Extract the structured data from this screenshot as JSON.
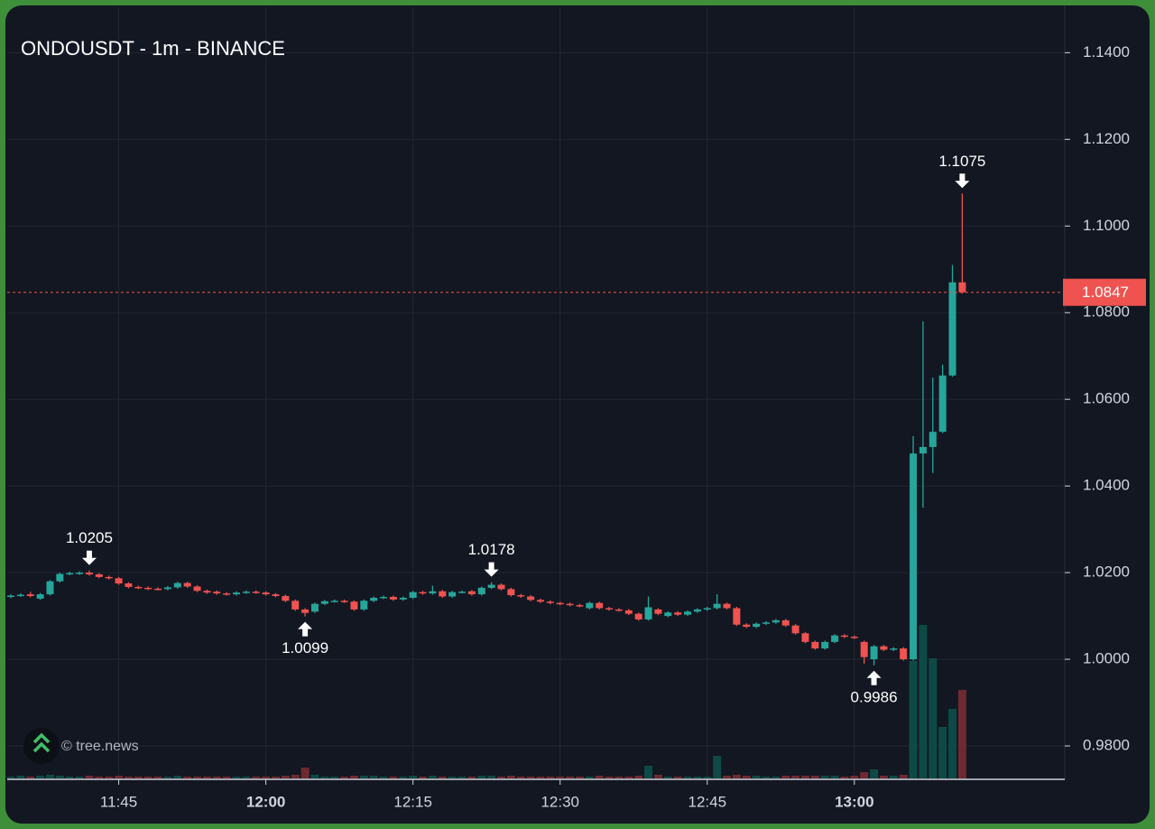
{
  "chart_data": {
    "type": "candlestick",
    "title": "ONDOUSDT - 1m - BINANCE",
    "watermark": "© tree.news",
    "x": [
      "11:34",
      "11:35",
      "11:36",
      "11:37",
      "11:38",
      "11:39",
      "11:40",
      "11:41",
      "11:42",
      "11:43",
      "11:44",
      "11:45",
      "11:46",
      "11:47",
      "11:48",
      "11:49",
      "11:50",
      "11:51",
      "11:52",
      "11:53",
      "11:54",
      "11:55",
      "11:56",
      "11:57",
      "11:58",
      "11:59",
      "12:00",
      "12:01",
      "12:02",
      "12:03",
      "12:04",
      "12:05",
      "12:06",
      "12:07",
      "12:08",
      "12:09",
      "12:10",
      "12:11",
      "12:12",
      "12:13",
      "12:14",
      "12:15",
      "12:16",
      "12:17",
      "12:18",
      "12:19",
      "12:20",
      "12:21",
      "12:22",
      "12:23",
      "12:24",
      "12:25",
      "12:26",
      "12:27",
      "12:28",
      "12:29",
      "12:30",
      "12:31",
      "12:32",
      "12:33",
      "12:34",
      "12:35",
      "12:36",
      "12:37",
      "12:38",
      "12:39",
      "12:40",
      "12:41",
      "12:42",
      "12:43",
      "12:44",
      "12:45",
      "12:46",
      "12:47",
      "12:48",
      "12:49",
      "12:50",
      "12:51",
      "12:52",
      "12:53",
      "12:54",
      "12:55",
      "12:56",
      "12:57",
      "12:58",
      "12:59",
      "13:00",
      "13:01",
      "13:02",
      "13:03",
      "13:04",
      "13:05",
      "13:06",
      "13:07",
      "13:08",
      "13:09",
      "13:10",
      "13:11"
    ],
    "open": [
      1.0144,
      1.0147,
      1.015,
      1.014,
      1.015,
      1.018,
      1.0197,
      1.0198,
      1.02,
      1.0196,
      1.019,
      1.0187,
      1.0175,
      1.0167,
      1.0165,
      1.0163,
      1.0162,
      1.0166,
      1.0176,
      1.0168,
      1.0158,
      1.0156,
      1.0152,
      1.015,
      1.0154,
      1.0156,
      1.0154,
      1.015,
      1.0146,
      1.0135,
      1.0115,
      1.011,
      1.0128,
      1.0134,
      1.0135,
      1.0133,
      1.0115,
      1.0135,
      1.0142,
      1.0144,
      1.0138,
      1.0142,
      1.0155,
      1.0152,
      1.0157,
      1.0145,
      1.0155,
      1.0157,
      1.015,
      1.0165,
      1.0172,
      1.0162,
      1.0148,
      1.0145,
      1.0137,
      1.0133,
      1.013,
      1.0128,
      1.0125,
      1.0118,
      1.013,
      1.0118,
      1.0115,
      1.0113,
      1.0105,
      1.0092,
      1.0115,
      1.01,
      1.0108,
      1.0103,
      1.011,
      1.0115,
      1.0118,
      1.0128,
      1.0118,
      1.008,
      1.0075,
      1.0082,
      1.0085,
      1.009,
      1.0078,
      1.006,
      1.004,
      1.0025,
      1.004,
      1.0055,
      1.0052,
      1.004,
      1.0,
      1.003,
      1.0022,
      1.0025,
      1.0,
      1.0475,
      1.049,
      1.0525,
      1.0655,
      1.087
    ],
    "high": [
      1.015,
      1.0152,
      1.0156,
      1.0153,
      1.0183,
      1.02,
      1.0202,
      1.0203,
      1.0205,
      1.0199,
      1.0193,
      1.019,
      1.0178,
      1.017,
      1.0168,
      1.0166,
      1.0169,
      1.0179,
      1.0179,
      1.0171,
      1.0161,
      1.0159,
      1.0155,
      1.0157,
      1.0159,
      1.0159,
      1.0157,
      1.0153,
      1.0149,
      1.0138,
      1.0118,
      1.0131,
      1.0137,
      1.0138,
      1.0138,
      1.0136,
      1.0138,
      1.0145,
      1.0147,
      1.0147,
      1.0145,
      1.0158,
      1.0158,
      1.017,
      1.016,
      1.0158,
      1.0159,
      1.016,
      1.0168,
      1.0178,
      1.0175,
      1.0165,
      1.0151,
      1.0148,
      1.014,
      1.0136,
      1.0133,
      1.0131,
      1.0128,
      1.0133,
      1.0133,
      1.0121,
      1.0118,
      1.0116,
      1.0108,
      1.0145,
      1.0118,
      1.0111,
      1.0111,
      1.0113,
      1.0118,
      1.0121,
      1.015,
      1.0131,
      1.0121,
      1.0083,
      1.0085,
      1.0088,
      1.0093,
      1.0093,
      1.0081,
      1.0063,
      1.0043,
      1.0043,
      1.0058,
      1.0058,
      1.0055,
      1.0043,
      1.0033,
      1.0033,
      1.0028,
      1.0028,
      1.0515,
      1.078,
      1.065,
      1.068,
      1.091,
      1.1075
    ],
    "low": [
      1.0141,
      1.0144,
      1.0143,
      1.0137,
      1.0147,
      1.0177,
      1.0194,
      1.0195,
      1.0193,
      1.0187,
      1.0184,
      1.0172,
      1.0164,
      1.0162,
      1.016,
      1.0159,
      1.0159,
      1.0163,
      1.0165,
      1.0155,
      1.0151,
      1.0149,
      1.0147,
      1.0147,
      1.0151,
      1.0151,
      1.0147,
      1.0143,
      1.0132,
      1.0112,
      1.0099,
      1.0107,
      1.0125,
      1.0131,
      1.013,
      1.0112,
      1.0112,
      1.0132,
      1.0139,
      1.0135,
      1.0135,
      1.0139,
      1.0149,
      1.0149,
      1.0142,
      1.0142,
      1.0152,
      1.0147,
      1.0147,
      1.0162,
      1.0159,
      1.0145,
      1.0142,
      1.0134,
      1.013,
      1.0127,
      1.0125,
      1.0122,
      1.012,
      1.0115,
      1.0115,
      1.0112,
      1.011,
      1.0102,
      1.0089,
      1.0089,
      1.0102,
      1.0097,
      1.01,
      1.01,
      1.0107,
      1.0112,
      1.0115,
      1.0115,
      1.0077,
      1.0072,
      1.0072,
      1.0079,
      1.0082,
      1.0075,
      1.0057,
      1.0037,
      1.0022,
      1.0022,
      1.0037,
      1.0049,
      1.0047,
      0.999,
      0.9986,
      1.0019,
      1.0019,
      0.9997,
      0.9997,
      1.035,
      1.043,
      1.0522,
      1.0652,
      1.0844
    ],
    "close": [
      1.0147,
      1.0149,
      1.0146,
      1.015,
      1.018,
      1.0197,
      1.0199,
      1.02,
      1.0196,
      1.019,
      1.0187,
      1.0175,
      1.0167,
      1.0165,
      1.0163,
      1.0162,
      1.0166,
      1.0176,
      1.0168,
      1.0158,
      1.0154,
      1.0152,
      1.015,
      1.0154,
      1.0156,
      1.0154,
      1.015,
      1.0146,
      1.0135,
      1.0115,
      1.0107,
      1.0128,
      1.0134,
      1.0135,
      1.0133,
      1.0115,
      1.0135,
      1.0142,
      1.0144,
      1.0138,
      1.0142,
      1.0155,
      1.0152,
      1.0157,
      1.0145,
      1.0155,
      1.0156,
      1.015,
      1.0165,
      1.0172,
      1.0162,
      1.0148,
      1.0145,
      1.0137,
      1.0133,
      1.013,
      1.0128,
      1.0125,
      1.0123,
      1.013,
      1.0118,
      1.0115,
      1.0113,
      1.0105,
      1.0092,
      1.012,
      1.0105,
      1.0108,
      1.0103,
      1.011,
      1.0115,
      1.0118,
      1.0128,
      1.0118,
      1.008,
      1.0075,
      1.0082,
      1.0085,
      1.009,
      1.0078,
      1.006,
      1.004,
      1.0025,
      1.004,
      1.0055,
      1.0052,
      1.005,
      1.0005,
      1.003,
      1.0022,
      1.0025,
      1.0,
      1.0475,
      1.049,
      1.0525,
      1.0655,
      1.087,
      1.0847
    ],
    "volume": [
      2,
      3,
      2,
      3,
      4,
      3,
      2,
      2,
      3,
      2,
      2,
      3,
      2,
      2,
      2,
      2,
      2,
      3,
      2,
      2,
      2,
      2,
      2,
      2,
      2,
      2,
      2,
      2,
      3,
      4,
      12,
      4,
      2,
      2,
      2,
      3,
      3,
      3,
      2,
      2,
      2,
      3,
      2,
      3,
      2,
      2,
      2,
      2,
      3,
      3,
      2,
      3,
      2,
      2,
      2,
      2,
      2,
      2,
      2,
      2,
      3,
      2,
      2,
      2,
      3,
      14,
      4,
      2,
      2,
      2,
      2,
      2,
      25,
      3,
      4,
      3,
      3,
      2,
      2,
      3,
      3,
      3,
      3,
      3,
      3,
      2,
      3,
      7,
      10,
      3,
      3,
      4,
      130,
      170,
      133,
      57,
      77,
      98
    ],
    "up_color": "#26a69a",
    "down_color": "#ef5350",
    "up_volume_color": "#0e4a45",
    "down_volume_color": "#6e2a30",
    "ylim": [
      0.9725,
      1.1505
    ],
    "yticks": [
      {
        "value": 0.98,
        "label": "0.9800"
      },
      {
        "value": 1.0,
        "label": "1.0000"
      },
      {
        "value": 1.02,
        "label": "1.0200"
      },
      {
        "value": 1.04,
        "label": "1.0400"
      },
      {
        "value": 1.06,
        "label": "1.0600"
      },
      {
        "value": 1.08,
        "label": "1.0800"
      },
      {
        "value": 1.1,
        "label": "1.1000"
      },
      {
        "value": 1.12,
        "label": "1.1200"
      },
      {
        "value": 1.14,
        "label": "1.1400"
      }
    ],
    "xticks": [
      "11:45",
      "12:00",
      "12:15",
      "12:30",
      "12:45",
      "13:00"
    ],
    "grid": true,
    "last_price": 1.0847,
    "annotations": [
      {
        "x": "11:42",
        "value": 1.0205,
        "direction": "down"
      },
      {
        "x": "12:04",
        "value": 1.0099,
        "direction": "up"
      },
      {
        "x": "12:23",
        "value": 1.0178,
        "direction": "down"
      },
      {
        "x": "13:02",
        "value": 0.9986,
        "direction": "up"
      },
      {
        "x": "13:11",
        "value": 1.1075,
        "direction": "down"
      }
    ]
  }
}
